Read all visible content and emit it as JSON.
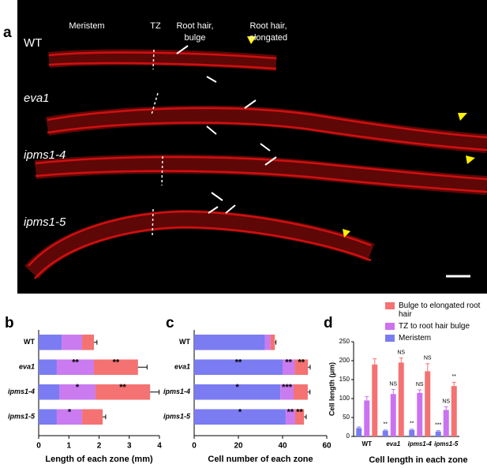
{
  "panel_a": {
    "label": "a",
    "zone_labels": [
      [
        "Meristem"
      ],
      [
        "TZ"
      ],
      [
        "Root hair,",
        "bulge"
      ],
      [
        "Root hair,",
        "elongated"
      ]
    ],
    "genotypes": [
      "WT",
      "eva1",
      "ipms1-4",
      "ipms1-5"
    ]
  },
  "chart_data": [
    {
      "type": "stacked-barh",
      "panel": "b",
      "xlabel": "Length of each zone (mm)",
      "categories": [
        "WT",
        "eva1",
        "ipms1-4",
        "ipms1-5"
      ],
      "xlim": [
        0,
        4
      ],
      "xticks": [
        0,
        1,
        2,
        3,
        4
      ],
      "series": [
        {
          "color": "#7b7bf2",
          "values": [
            0.76,
            0.6,
            0.68,
            0.6
          ],
          "errors": [
            0.04,
            0.03,
            0.03,
            0.03
          ],
          "significance": [
            null,
            null,
            null,
            null
          ]
        },
        {
          "color": "#c97bef",
          "values": [
            0.68,
            1.23,
            1.2,
            0.84
          ],
          "errors": [
            0.06,
            0.08,
            0.1,
            0.05
          ],
          "significance": [
            null,
            "**",
            "*",
            "*"
          ]
        },
        {
          "color": "#f47272",
          "values": [
            0.39,
            1.46,
            1.81,
            0.68
          ],
          "errors": [
            0.1,
            0.3,
            0.3,
            0.1
          ],
          "significance": [
            null,
            "**",
            "**",
            null
          ]
        }
      ]
    },
    {
      "type": "stacked-barh",
      "panel": "c",
      "xlabel": "Cell number of each zone",
      "categories": [
        "WT",
        "eva1",
        "ipms1-4",
        "ipms1-5"
      ],
      "xlim": [
        0,
        60
      ],
      "xticks": [
        0,
        20,
        40,
        60
      ],
      "series": [
        {
          "color": "#7b7bf2",
          "values": [
            32,
            40,
            39,
            41.4
          ],
          "errors": [
            2,
            1.5,
            1.5,
            1.5
          ],
          "significance": [
            null,
            "**",
            "*",
            "*"
          ]
        },
        {
          "color": "#c97bef",
          "values": [
            2.5,
            5.5,
            6,
            4.3
          ],
          "errors": [
            0.5,
            1,
            1,
            1
          ],
          "significance": [
            null,
            "**",
            "***",
            "**"
          ]
        },
        {
          "color": "#f47272",
          "values": [
            2,
            6,
            6.4,
            4
          ],
          "errors": [
            0.5,
            1,
            1,
            1
          ],
          "significance": [
            null,
            "**",
            null,
            "**"
          ]
        }
      ]
    },
    {
      "type": "bar",
      "panel": "d",
      "xlabel": "Cell length in each zone",
      "ylabel": "Cell length (μm)",
      "categories": [
        "WT",
        "eva1",
        "ipms1-4",
        "ipms1-5"
      ],
      "ylim": [
        0,
        250
      ],
      "yticks": [
        0,
        50,
        100,
        150,
        200,
        250
      ],
      "legend": "upper right",
      "series": [
        {
          "name": "Meristem",
          "color": "#7b7bf2",
          "values": [
            22,
            15,
            17,
            13
          ],
          "errors": [
            3,
            2,
            2,
            2
          ],
          "significance": [
            null,
            "**",
            "**",
            "***"
          ]
        },
        {
          "name": "TZ to root hair bulge",
          "color": "#cc72f0",
          "values": [
            95,
            112,
            115,
            70
          ],
          "errors": [
            10,
            12,
            8,
            8
          ],
          "significance": [
            null,
            "NS",
            "NS",
            "NS"
          ]
        },
        {
          "name": "Bulge to elongated root hair",
          "color": "#f47272",
          "values": [
            190,
            195,
            172,
            133
          ],
          "errors": [
            15,
            12,
            20,
            10
          ],
          "significance": [
            null,
            "NS",
            "NS",
            "**"
          ]
        }
      ]
    }
  ]
}
